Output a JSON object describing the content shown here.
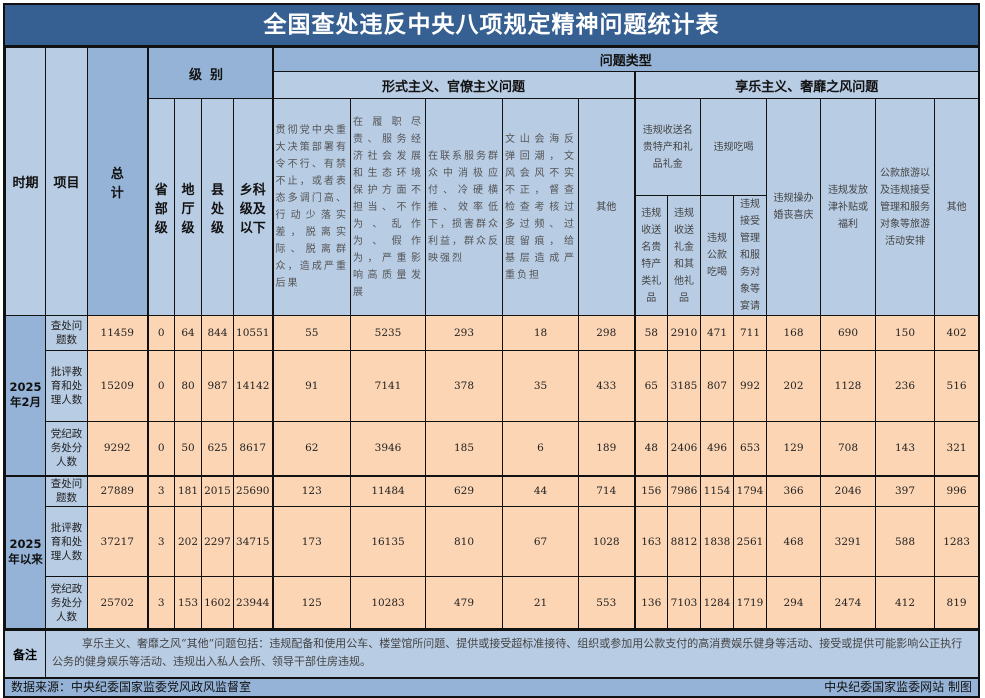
{
  "title": "全国查处违反中央八项规定精神问题统计表",
  "header": {
    "period": "时期",
    "item": "项目",
    "total": "总计",
    "level": "级别",
    "levels": [
      "省部级",
      "地厅级",
      "县处级",
      "乡科级及以下"
    ],
    "problem_type": "问题类型",
    "formalism": "形式主义、官僚主义问题",
    "formalism_cols": [
      "贯彻党中央重大决策部署有令不行、有禁不止，或者表态多调门高、行动少落实差，脱离实际、脱离群众，造成严重后果",
      "在履职尽责、服务经济社会发展和生态环境保护方面不担当、不作为、乱作为、假作为，严重影响高质量发展",
      "在联系服务群众中消极应付、冷硬横推、效率低下，损害群众利益，群众反映强烈",
      "文山会海反弹回潮，文风会风不实不正，督查检查考核过多过频、过度留痕，给基层造成严重负担",
      "其他"
    ],
    "hedonism": "享乐主义、奢靡之风问题",
    "gifts_group": "违规收送名贵特产和礼品礼金",
    "gifts_cols": [
      "违规收送名贵特产类礼品",
      "违规收送礼金和其他礼品"
    ],
    "dining_group": "违规吃喝",
    "dining_cols": [
      "违规公款吃喝",
      "违规接受管理和服务对象等宴请"
    ],
    "hedonism_cols": [
      "违规操办婚丧喜庆",
      "违规发放津补贴或福利",
      "公款旅游以及违规接受管理和服务对象等旅游活动安排",
      "其他"
    ]
  },
  "periods": [
    {
      "label": "2025年2月",
      "rows": [
        {
          "item": "查处问题数",
          "values": [
            11459,
            0,
            64,
            844,
            10551,
            55,
            5235,
            293,
            18,
            298,
            58,
            2910,
            471,
            711,
            168,
            690,
            150,
            402
          ]
        },
        {
          "item": "批评教育和处理人数",
          "values": [
            15209,
            0,
            80,
            987,
            14142,
            91,
            7141,
            378,
            35,
            433,
            65,
            3185,
            807,
            992,
            202,
            1128,
            236,
            516
          ]
        },
        {
          "item": "党纪政务处分人数",
          "values": [
            9292,
            0,
            50,
            625,
            8617,
            62,
            3946,
            185,
            6,
            189,
            48,
            2406,
            496,
            653,
            129,
            708,
            143,
            321
          ]
        }
      ]
    },
    {
      "label": "2025年以来",
      "rows": [
        {
          "item": "查处问题数",
          "values": [
            27889,
            3,
            181,
            2015,
            25690,
            123,
            11484,
            629,
            44,
            714,
            156,
            7986,
            1154,
            1794,
            366,
            2046,
            397,
            996
          ]
        },
        {
          "item": "批评教育和处理人数",
          "values": [
            37217,
            3,
            202,
            2297,
            34715,
            173,
            16135,
            810,
            67,
            1028,
            163,
            8812,
            1838,
            2561,
            468,
            3291,
            588,
            1283
          ]
        },
        {
          "item": "党纪政务处分人数",
          "values": [
            25702,
            3,
            153,
            1602,
            23944,
            125,
            10283,
            479,
            21,
            553,
            136,
            7103,
            1284,
            1719,
            294,
            2474,
            412,
            819
          ]
        }
      ]
    }
  ],
  "note": {
    "label": "备注",
    "text": "享乐主义、奢靡之风“其他”问题包括：违规配备和使用公车、楼堂馆所问题、提供或接受超标准接待、组织或参加用公款支付的高消费娱乐健身等活动、接受或提供可能影响公正执行公务的健身娱乐等活动、违规出入私人会所、领导干部住房违规。"
  },
  "footer": {
    "source": "数据来源：中央纪委国家监委党风政风监督室",
    "credit": "中央纪委国家监委网站 制图"
  },
  "colors": {
    "title_bg": "#376092",
    "header_bg": "#b8cce4",
    "header_dark": "#95b3d7",
    "data_bg": "#fcd5b4"
  }
}
